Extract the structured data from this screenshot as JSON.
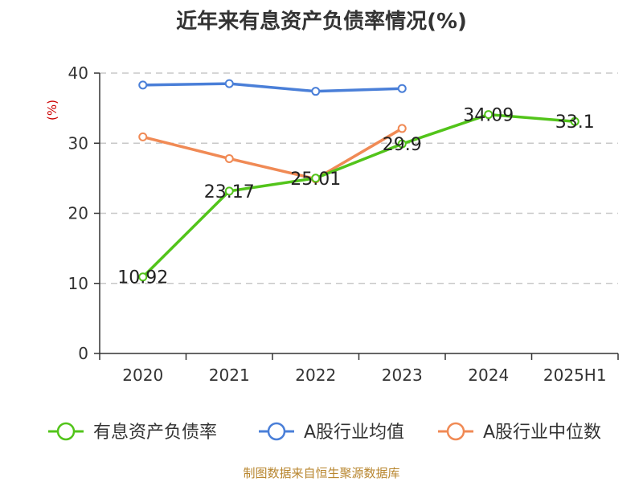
{
  "title": "近年来有息资产负债率情况(%)",
  "unit": "(%)",
  "footer": "制图数据来自恒生聚源数据库",
  "chart_data": {
    "type": "line",
    "title": "近年来有息资产负债率情况(%)",
    "ylabel": "(%)",
    "categories": [
      "2020",
      "2021",
      "2022",
      "2023",
      "2024",
      "2025H1"
    ],
    "ylim": [
      0,
      40
    ],
    "yticks": [
      0,
      10,
      20,
      30,
      40
    ],
    "grid": true,
    "legend_position": "bottom",
    "series": [
      {
        "name": "有息资产负债率",
        "color": "#52c41a",
        "values": [
          10.92,
          23.17,
          25.01,
          29.9,
          34.09,
          33.1
        ],
        "labels": [
          "10.92",
          "23.17",
          "25.01",
          "29.9",
          "34.09",
          "33.1"
        ]
      },
      {
        "name": "A股行业均值",
        "color": "#4a7fd8",
        "values": [
          38.3,
          38.5,
          37.4,
          37.8,
          null,
          null
        ]
      },
      {
        "name": "A股行业中位数",
        "color": "#f08a55",
        "values": [
          30.9,
          27.8,
          24.9,
          32.1,
          null,
          null
        ]
      }
    ]
  }
}
